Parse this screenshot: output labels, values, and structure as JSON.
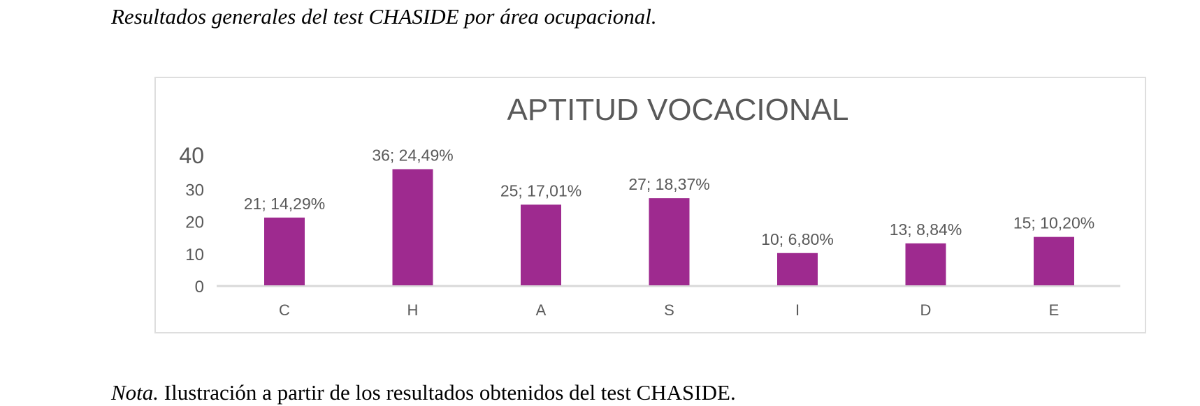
{
  "caption": "Resultados generales del test CHASIDE por área ocupacional.",
  "note": {
    "label": "Nota.",
    "text": " Ilustración a partir de los resultados obtenidos del test CHASIDE."
  },
  "chart_data": {
    "type": "bar",
    "title": "APTITUD VOCACIONAL",
    "categories": [
      "C",
      "H",
      "A",
      "S",
      "I",
      "D",
      "E"
    ],
    "values": [
      21,
      36,
      25,
      27,
      10,
      13,
      15
    ],
    "data_labels": [
      "21; 14,29%",
      "36; 24,49%",
      "25; 17,01%",
      "27; 18,37%",
      "10; 6,80%",
      "13; 8,84%",
      "15; 10,20%"
    ],
    "yticks": [
      0,
      10,
      20,
      30,
      40
    ],
    "ylim": [
      0,
      40
    ],
    "grid": false,
    "legend": "none",
    "bar_color": "#9e2a8f"
  }
}
